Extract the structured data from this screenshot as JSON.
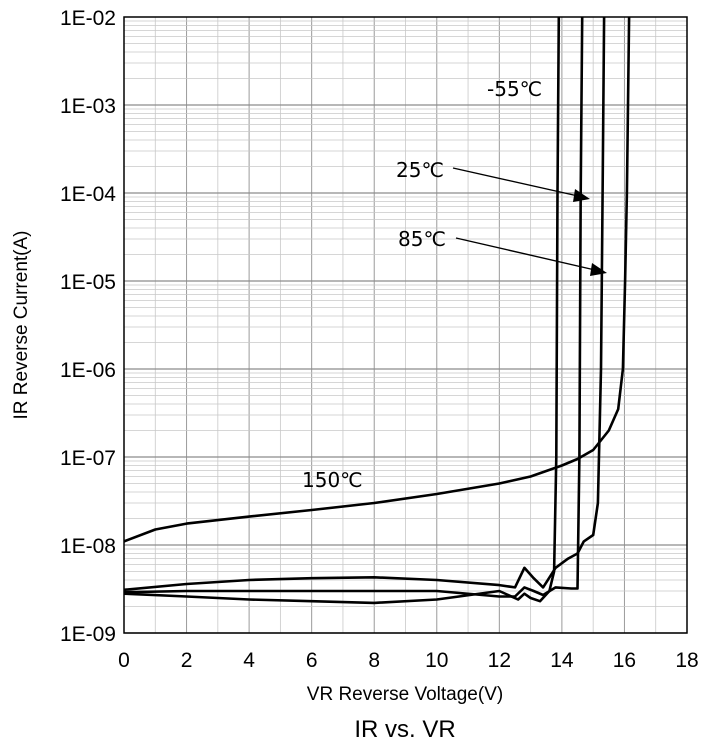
{
  "chart_data": {
    "type": "line",
    "title": "IR vs. VR",
    "xlabel": "VR Reverse Voltage(V)",
    "ylabel": "IR Reverse Current(A)",
    "xlim": [
      0,
      18
    ],
    "ylim": [
      1e-09,
      0.01
    ],
    "yscale": "log",
    "grid": true,
    "x_ticks": [
      "0",
      "2",
      "4",
      "6",
      "8",
      "10",
      "12",
      "14",
      "16",
      "18"
    ],
    "y_ticks": [
      "1E-09",
      "1E-08",
      "1E-07",
      "1E-06",
      "1E-05",
      "1E-04",
      "1E-03",
      "1E-02"
    ],
    "series": [
      {
        "name": "-55℃",
        "points": [
          [
            0,
            2.8e-09
          ],
          [
            2,
            2.6e-09
          ],
          [
            4,
            2.4e-09
          ],
          [
            6,
            2.3e-09
          ],
          [
            8,
            2.2e-09
          ],
          [
            10,
            2.4e-09
          ],
          [
            12,
            3e-09
          ],
          [
            12.6,
            2.4e-09
          ],
          [
            12.8,
            2.8e-09
          ],
          [
            13,
            2.5e-09
          ],
          [
            13.3,
            2.3e-09
          ],
          [
            13.6,
            3e-09
          ],
          [
            13.75,
            5e-09
          ],
          [
            13.82,
            1e-07
          ],
          [
            13.86,
            0.0001
          ],
          [
            13.9,
            0.01
          ]
        ]
      },
      {
        "name": "25℃",
        "points": [
          [
            0,
            2.9e-09
          ],
          [
            2,
            3e-09
          ],
          [
            4,
            3e-09
          ],
          [
            6,
            3e-09
          ],
          [
            8,
            3e-09
          ],
          [
            10,
            3e-09
          ],
          [
            12,
            2.6e-09
          ],
          [
            12.5,
            2.6e-09
          ],
          [
            12.8,
            3.3e-09
          ],
          [
            13.1,
            3e-09
          ],
          [
            13.4,
            2.7e-09
          ],
          [
            13.8,
            3.3e-09
          ],
          [
            14.3,
            3.2e-09
          ],
          [
            14.5,
            3.2e-09
          ],
          [
            14.56,
            1e-07
          ],
          [
            14.6,
            0.0001
          ],
          [
            14.65,
            0.01
          ]
        ]
      },
      {
        "name": "85℃",
        "points": [
          [
            0,
            3.1e-09
          ],
          [
            2,
            3.6e-09
          ],
          [
            4,
            4e-09
          ],
          [
            6,
            4.2e-09
          ],
          [
            8,
            4.3e-09
          ],
          [
            10,
            4e-09
          ],
          [
            12,
            3.5e-09
          ],
          [
            12.5,
            3.3e-09
          ],
          [
            12.8,
            5.5e-09
          ],
          [
            13.1,
            4.2e-09
          ],
          [
            13.4,
            3.3e-09
          ],
          [
            13.8,
            5.5e-09
          ],
          [
            14.2,
            7e-09
          ],
          [
            14.5,
            8e-09
          ],
          [
            14.7,
            1.1e-08
          ],
          [
            15.0,
            1.3e-08
          ],
          [
            15.15,
            3e-08
          ],
          [
            15.25,
            1e-06
          ],
          [
            15.3,
            0.0001
          ],
          [
            15.35,
            0.01
          ]
        ]
      },
      {
        "name": "150℃",
        "points": [
          [
            0,
            1.1e-08
          ],
          [
            1,
            1.5e-08
          ],
          [
            2,
            1.75e-08
          ],
          [
            4,
            2.1e-08
          ],
          [
            6,
            2.5e-08
          ],
          [
            8,
            3e-08
          ],
          [
            10,
            3.8e-08
          ],
          [
            12,
            5e-08
          ],
          [
            13,
            6e-08
          ],
          [
            14,
            8e-08
          ],
          [
            14.5,
            9.5e-08
          ],
          [
            15,
            1.2e-07
          ],
          [
            15.5,
            2e-07
          ],
          [
            15.8,
            3.5e-07
          ],
          [
            15.95,
            1e-06
          ],
          [
            16.02,
            1e-05
          ],
          [
            16.08,
            0.0001
          ],
          [
            16.15,
            0.01
          ]
        ]
      }
    ],
    "annotations": [
      "-55℃",
      "25℃",
      "85℃",
      "150℃"
    ]
  }
}
